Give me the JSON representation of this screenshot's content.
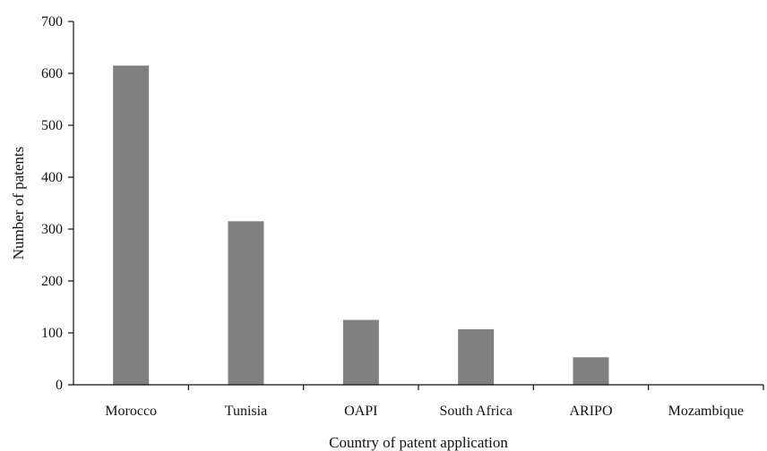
{
  "chart_data": {
    "type": "bar",
    "title": "",
    "xlabel": "Country of patent application",
    "ylabel": "Number of patents",
    "categories": [
      "Morocco",
      "Tunisia",
      "OAPI",
      "South Africa",
      "ARIPO",
      "Mozambique"
    ],
    "values": [
      615,
      315,
      125,
      107,
      53,
      0
    ],
    "ylim": [
      0,
      700
    ],
    "yticks": [
      0,
      100,
      200,
      300,
      400,
      500,
      600,
      700
    ],
    "grid": false,
    "legend": "none",
    "bar_color": "#808080"
  }
}
